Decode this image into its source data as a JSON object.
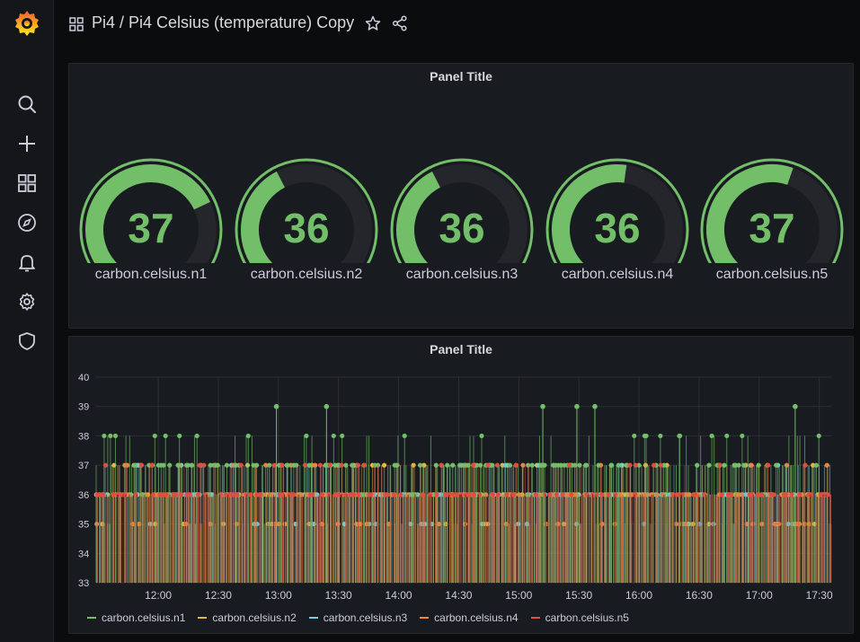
{
  "header": {
    "breadcrumb": "Pi4 / Pi4 Celsius (temperature) Copy"
  },
  "sidebar": {
    "items": [
      "search-icon",
      "plus-icon",
      "dashboards-icon",
      "explore-icon",
      "alerting-icon",
      "settings-icon",
      "shield-icon"
    ]
  },
  "gauge_panel": {
    "title": "Panel Title",
    "min": 0,
    "max": 50,
    "color": "#73bf69",
    "gauges": [
      {
        "name": "carbon.celsius.n1",
        "value": "37",
        "fill": 0.74
      },
      {
        "name": "carbon.celsius.n2",
        "value": "36",
        "fill": 0.4
      },
      {
        "name": "carbon.celsius.n3",
        "value": "36",
        "fill": 0.4
      },
      {
        "name": "carbon.celsius.n4",
        "value": "36",
        "fill": 0.53
      },
      {
        "name": "carbon.celsius.n5",
        "value": "37",
        "fill": 0.57
      }
    ]
  },
  "graph_panel": {
    "title": "Panel Title",
    "legend": [
      {
        "name": "carbon.celsius.n1",
        "color": "#73bf69"
      },
      {
        "name": "carbon.celsius.n2",
        "color": "#eab839"
      },
      {
        "name": "carbon.celsius.n3",
        "color": "#6ed0e0"
      },
      {
        "name": "carbon.celsius.n4",
        "color": "#ef843c"
      },
      {
        "name": "carbon.celsius.n5",
        "color": "#e24d42"
      }
    ]
  },
  "chart_data": {
    "type": "line",
    "ylim": [
      33,
      40
    ],
    "yticks": [
      "33",
      "34",
      "35",
      "36",
      "37",
      "38",
      "39",
      "40"
    ],
    "xticks": [
      "12:00",
      "12:30",
      "13:00",
      "13:30",
      "14:00",
      "14:30",
      "15:00",
      "15:30",
      "16:00",
      "16:30",
      "17:00",
      "17:30"
    ],
    "x_range_minutes": [
      -31,
      336
    ],
    "grid": true,
    "legend_placement": "bottom-left",
    "series": [
      {
        "name": "carbon.celsius.n1",
        "color": "#73bf69",
        "typical": 37,
        "range": [
          36,
          39
        ]
      },
      {
        "name": "carbon.celsius.n2",
        "color": "#eab839",
        "typical": 36,
        "range": [
          35,
          37
        ]
      },
      {
        "name": "carbon.celsius.n3",
        "color": "#6ed0e0",
        "typical": 36,
        "range": [
          35,
          37
        ]
      },
      {
        "name": "carbon.celsius.n4",
        "color": "#ef843c",
        "typical": 36,
        "range": [
          35,
          37
        ]
      },
      {
        "name": "carbon.celsius.n5",
        "color": "#e24d42",
        "typical": 36,
        "range": [
          36,
          38
        ]
      }
    ],
    "highlights": [
      {
        "series": "carbon.celsius.n1",
        "time": "12:59",
        "value": 39
      },
      {
        "series": "carbon.celsius.n1",
        "time": "13:24",
        "value": 39
      },
      {
        "series": "carbon.celsius.n1",
        "time": "15:12",
        "value": 39
      },
      {
        "series": "carbon.celsius.n1",
        "time": "15:29",
        "value": 39
      },
      {
        "series": "carbon.celsius.n1",
        "time": "15:38",
        "value": 39
      },
      {
        "series": "carbon.celsius.n1",
        "time": "17:18",
        "value": 39
      }
    ]
  }
}
